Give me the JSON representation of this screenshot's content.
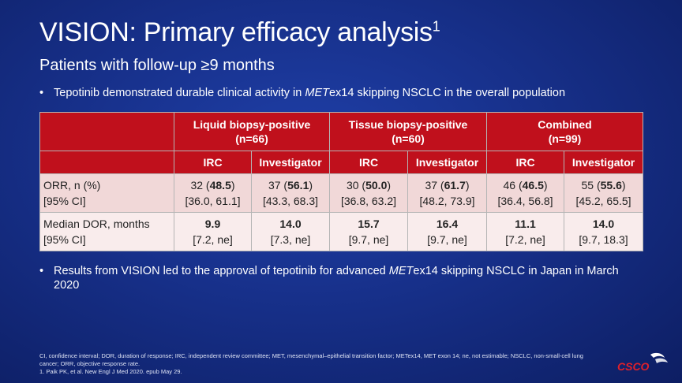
{
  "slide": {
    "title": "VISION: Primary efficacy analysis",
    "title_sup": "1",
    "subtitle": "Patients with follow-up ≥9 months",
    "bullet1": {
      "pre": "Tepotinib demonstrated durable clinical activity in ",
      "italic": "MET",
      "post": "ex14 skipping NSCLC in the overall population"
    },
    "bullet2": {
      "pre": "Results from VISION led to the approval of tepotinib for advanced ",
      "italic": "MET",
      "post": "ex14 skipping NSCLC in Japan in March 2020"
    }
  },
  "table": {
    "groups": [
      {
        "label": "Liquid biopsy-positive",
        "n": "(n=66)"
      },
      {
        "label": "Tissue biopsy-positive",
        "n": "(n=60)"
      },
      {
        "label": "Combined",
        "n": "(n=99)"
      }
    ],
    "subheaders": [
      "IRC",
      "Investigator",
      "IRC",
      "Investigator",
      "IRC",
      "Investigator"
    ],
    "rows": [
      {
        "label1": "ORR, n (%)",
        "label2": "[95% CI]",
        "cells": [
          {
            "n": "32",
            "pct": "48.5",
            "ci": "[36.0, 61.1]"
          },
          {
            "n": "37",
            "pct": "56.1",
            "ci": "[43.3, 68.3]"
          },
          {
            "n": "30",
            "pct": "50.0",
            "ci": "[36.8, 63.2]"
          },
          {
            "n": "37",
            "pct": "61.7",
            "ci": "[48.2, 73.9]"
          },
          {
            "n": "46",
            "pct": "46.5",
            "ci": "[36.4, 56.8]"
          },
          {
            "n": "55",
            "pct": "55.6",
            "ci": "[45.2, 65.5]"
          }
        ]
      },
      {
        "label1": "Median DOR, months",
        "label2": "[95% CI]",
        "cells": [
          {
            "val": "9.9",
            "ci": "[7.2, ne]"
          },
          {
            "val": "14.0",
            "ci": "[7.3, ne]"
          },
          {
            "val": "15.7",
            "ci": "[9.7, ne]"
          },
          {
            "val": "16.4",
            "ci": "[9.7, ne]"
          },
          {
            "val": "11.1",
            "ci": "[7.2, ne]"
          },
          {
            "val": "14.0",
            "ci": "[9.7, 18.3]"
          }
        ]
      }
    ]
  },
  "footer": {
    "abbrev": "CI, confidence interval; DOR, duration of response; IRC, independent review committee; MET, mesenchymal–epithelial transition factor; METex14, MET exon 14; ne, not estimable; NSCLC, non-small-cell lung cancer; ORR, objective response rate.",
    "ref": "1. Paik PK, et al. New Engl J Med 2020. epub May 29."
  },
  "logo": {
    "text": "CSCO",
    "color": "#e0202a"
  }
}
